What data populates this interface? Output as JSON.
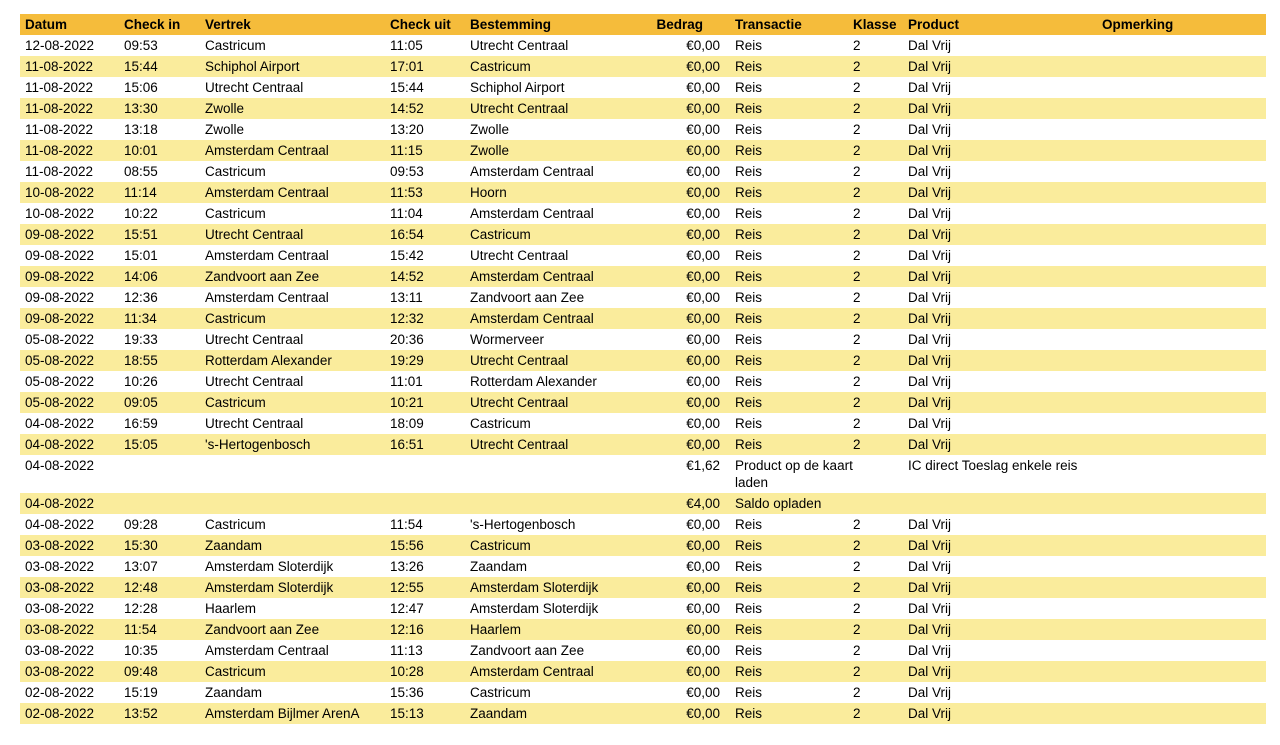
{
  "colors": {
    "header_bg": "#F5BC3B",
    "stripe_bg": "#FAEC9C",
    "row_bg": "#FFFFFF",
    "text": "#000000"
  },
  "table": {
    "columns": [
      {
        "key": "datum",
        "label": "Datum"
      },
      {
        "key": "check_in",
        "label": "Check in"
      },
      {
        "key": "vertrek",
        "label": "Vertrek"
      },
      {
        "key": "check_uit",
        "label": "Check uit"
      },
      {
        "key": "bestemming",
        "label": "Bestemming"
      },
      {
        "key": "bedrag",
        "label": "Bedrag"
      },
      {
        "key": "transactie",
        "label": "Transactie"
      },
      {
        "key": "klasse",
        "label": "Klasse"
      },
      {
        "key": "product",
        "label": "Product"
      },
      {
        "key": "opmerking",
        "label": "Opmerking"
      }
    ],
    "rows": [
      {
        "datum": "12-08-2022",
        "check_in": "09:53",
        "vertrek": "Castricum",
        "check_uit": "11:05",
        "bestemming": "Utrecht Centraal",
        "bedrag": "€0,00",
        "transactie": "Reis",
        "klasse": "2",
        "product": "Dal Vrij",
        "opmerking": ""
      },
      {
        "datum": "11-08-2022",
        "check_in": "15:44",
        "vertrek": "Schiphol Airport",
        "check_uit": "17:01",
        "bestemming": "Castricum",
        "bedrag": "€0,00",
        "transactie": "Reis",
        "klasse": "2",
        "product": "Dal Vrij",
        "opmerking": ""
      },
      {
        "datum": "11-08-2022",
        "check_in": "15:06",
        "vertrek": "Utrecht Centraal",
        "check_uit": "15:44",
        "bestemming": "Schiphol Airport",
        "bedrag": "€0,00",
        "transactie": "Reis",
        "klasse": "2",
        "product": "Dal Vrij",
        "opmerking": ""
      },
      {
        "datum": "11-08-2022",
        "check_in": "13:30",
        "vertrek": "Zwolle",
        "check_uit": "14:52",
        "bestemming": "Utrecht Centraal",
        "bedrag": "€0,00",
        "transactie": "Reis",
        "klasse": "2",
        "product": "Dal Vrij",
        "opmerking": ""
      },
      {
        "datum": "11-08-2022",
        "check_in": "13:18",
        "vertrek": "Zwolle",
        "check_uit": "13:20",
        "bestemming": "Zwolle",
        "bedrag": "€0,00",
        "transactie": "Reis",
        "klasse": "2",
        "product": "Dal Vrij",
        "opmerking": ""
      },
      {
        "datum": "11-08-2022",
        "check_in": "10:01",
        "vertrek": "Amsterdam Centraal",
        "check_uit": "11:15",
        "bestemming": "Zwolle",
        "bedrag": "€0,00",
        "transactie": "Reis",
        "klasse": "2",
        "product": "Dal Vrij",
        "opmerking": ""
      },
      {
        "datum": "11-08-2022",
        "check_in": "08:55",
        "vertrek": "Castricum",
        "check_uit": "09:53",
        "bestemming": "Amsterdam Centraal",
        "bedrag": "€0,00",
        "transactie": "Reis",
        "klasse": "2",
        "product": "Dal Vrij",
        "opmerking": ""
      },
      {
        "datum": "10-08-2022",
        "check_in": "11:14",
        "vertrek": "Amsterdam Centraal",
        "check_uit": "11:53",
        "bestemming": "Hoorn",
        "bedrag": "€0,00",
        "transactie": "Reis",
        "klasse": "2",
        "product": "Dal Vrij",
        "opmerking": ""
      },
      {
        "datum": "10-08-2022",
        "check_in": "10:22",
        "vertrek": "Castricum",
        "check_uit": "11:04",
        "bestemming": "Amsterdam Centraal",
        "bedrag": "€0,00",
        "transactie": "Reis",
        "klasse": "2",
        "product": "Dal Vrij",
        "opmerking": ""
      },
      {
        "datum": "09-08-2022",
        "check_in": "15:51",
        "vertrek": "Utrecht Centraal",
        "check_uit": "16:54",
        "bestemming": "Castricum",
        "bedrag": "€0,00",
        "transactie": "Reis",
        "klasse": "2",
        "product": "Dal Vrij",
        "opmerking": ""
      },
      {
        "datum": "09-08-2022",
        "check_in": "15:01",
        "vertrek": "Amsterdam Centraal",
        "check_uit": "15:42",
        "bestemming": "Utrecht Centraal",
        "bedrag": "€0,00",
        "transactie": "Reis",
        "klasse": "2",
        "product": "Dal Vrij",
        "opmerking": ""
      },
      {
        "datum": "09-08-2022",
        "check_in": "14:06",
        "vertrek": "Zandvoort aan Zee",
        "check_uit": "14:52",
        "bestemming": "Amsterdam Centraal",
        "bedrag": "€0,00",
        "transactie": "Reis",
        "klasse": "2",
        "product": "Dal Vrij",
        "opmerking": ""
      },
      {
        "datum": "09-08-2022",
        "check_in": "12:36",
        "vertrek": "Amsterdam Centraal",
        "check_uit": "13:11",
        "bestemming": "Zandvoort aan Zee",
        "bedrag": "€0,00",
        "transactie": "Reis",
        "klasse": "2",
        "product": "Dal Vrij",
        "opmerking": ""
      },
      {
        "datum": "09-08-2022",
        "check_in": "11:34",
        "vertrek": "Castricum",
        "check_uit": "12:32",
        "bestemming": "Amsterdam Centraal",
        "bedrag": "€0,00",
        "transactie": "Reis",
        "klasse": "2",
        "product": "Dal Vrij",
        "opmerking": ""
      },
      {
        "datum": "05-08-2022",
        "check_in": "19:33",
        "vertrek": "Utrecht Centraal",
        "check_uit": "20:36",
        "bestemming": "Wormerveer",
        "bedrag": "€0,00",
        "transactie": "Reis",
        "klasse": "2",
        "product": "Dal Vrij",
        "opmerking": ""
      },
      {
        "datum": "05-08-2022",
        "check_in": "18:55",
        "vertrek": "Rotterdam Alexander",
        "check_uit": "19:29",
        "bestemming": "Utrecht Centraal",
        "bedrag": "€0,00",
        "transactie": "Reis",
        "klasse": "2",
        "product": "Dal Vrij",
        "opmerking": ""
      },
      {
        "datum": "05-08-2022",
        "check_in": "10:26",
        "vertrek": "Utrecht Centraal",
        "check_uit": "11:01",
        "bestemming": "Rotterdam Alexander",
        "bedrag": "€0,00",
        "transactie": "Reis",
        "klasse": "2",
        "product": "Dal Vrij",
        "opmerking": ""
      },
      {
        "datum": "05-08-2022",
        "check_in": "09:05",
        "vertrek": "Castricum",
        "check_uit": "10:21",
        "bestemming": "Utrecht Centraal",
        "bedrag": "€0,00",
        "transactie": "Reis",
        "klasse": "2",
        "product": "Dal Vrij",
        "opmerking": ""
      },
      {
        "datum": "04-08-2022",
        "check_in": "16:59",
        "vertrek": "Utrecht Centraal",
        "check_uit": "18:09",
        "bestemming": "Castricum",
        "bedrag": "€0,00",
        "transactie": "Reis",
        "klasse": "2",
        "product": "Dal Vrij",
        "opmerking": ""
      },
      {
        "datum": "04-08-2022",
        "check_in": "15:05",
        "vertrek": "'s-Hertogenbosch",
        "check_uit": "16:51",
        "bestemming": "Utrecht Centraal",
        "bedrag": "€0,00",
        "transactie": "Reis",
        "klasse": "2",
        "product": "Dal Vrij",
        "opmerking": ""
      },
      {
        "datum": "04-08-2022",
        "check_in": "",
        "vertrek": "",
        "check_uit": "",
        "bestemming": "",
        "bedrag": "€1,62",
        "transactie": "Product op de kaart laden",
        "klasse": "",
        "product": "IC direct Toeslag enkele reis",
        "opmerking": ""
      },
      {
        "datum": "04-08-2022",
        "check_in": "",
        "vertrek": "",
        "check_uit": "",
        "bestemming": "",
        "bedrag": "€4,00",
        "transactie": "Saldo opladen",
        "klasse": "",
        "product": "",
        "opmerking": ""
      },
      {
        "datum": "04-08-2022",
        "check_in": "09:28",
        "vertrek": "Castricum",
        "check_uit": "11:54",
        "bestemming": "'s-Hertogenbosch",
        "bedrag": "€0,00",
        "transactie": "Reis",
        "klasse": "2",
        "product": "Dal Vrij",
        "opmerking": ""
      },
      {
        "datum": "03-08-2022",
        "check_in": "15:30",
        "vertrek": "Zaandam",
        "check_uit": "15:56",
        "bestemming": "Castricum",
        "bedrag": "€0,00",
        "transactie": "Reis",
        "klasse": "2",
        "product": "Dal Vrij",
        "opmerking": ""
      },
      {
        "datum": "03-08-2022",
        "check_in": "13:07",
        "vertrek": "Amsterdam Sloterdijk",
        "check_uit": "13:26",
        "bestemming": "Zaandam",
        "bedrag": "€0,00",
        "transactie": "Reis",
        "klasse": "2",
        "product": "Dal Vrij",
        "opmerking": ""
      },
      {
        "datum": "03-08-2022",
        "check_in": "12:48",
        "vertrek": "Amsterdam Sloterdijk",
        "check_uit": "12:55",
        "bestemming": "Amsterdam Sloterdijk",
        "bedrag": "€0,00",
        "transactie": "Reis",
        "klasse": "2",
        "product": "Dal Vrij",
        "opmerking": ""
      },
      {
        "datum": "03-08-2022",
        "check_in": "12:28",
        "vertrek": "Haarlem",
        "check_uit": "12:47",
        "bestemming": "Amsterdam Sloterdijk",
        "bedrag": "€0,00",
        "transactie": "Reis",
        "klasse": "2",
        "product": "Dal Vrij",
        "opmerking": ""
      },
      {
        "datum": "03-08-2022",
        "check_in": "11:54",
        "vertrek": "Zandvoort aan Zee",
        "check_uit": "12:16",
        "bestemming": "Haarlem",
        "bedrag": "€0,00",
        "transactie": "Reis",
        "klasse": "2",
        "product": "Dal Vrij",
        "opmerking": ""
      },
      {
        "datum": "03-08-2022",
        "check_in": "10:35",
        "vertrek": "Amsterdam Centraal",
        "check_uit": "11:13",
        "bestemming": "Zandvoort aan Zee",
        "bedrag": "€0,00",
        "transactie": "Reis",
        "klasse": "2",
        "product": "Dal Vrij",
        "opmerking": ""
      },
      {
        "datum": "03-08-2022",
        "check_in": "09:48",
        "vertrek": "Castricum",
        "check_uit": "10:28",
        "bestemming": "Amsterdam Centraal",
        "bedrag": "€0,00",
        "transactie": "Reis",
        "klasse": "2",
        "product": "Dal Vrij",
        "opmerking": ""
      },
      {
        "datum": "02-08-2022",
        "check_in": "15:19",
        "vertrek": "Zaandam",
        "check_uit": "15:36",
        "bestemming": "Castricum",
        "bedrag": "€0,00",
        "transactie": "Reis",
        "klasse": "2",
        "product": "Dal Vrij",
        "opmerking": ""
      },
      {
        "datum": "02-08-2022",
        "check_in": "13:52",
        "vertrek": "Amsterdam Bijlmer ArenA",
        "check_uit": "15:13",
        "bestemming": "Zaandam",
        "bedrag": "€0,00",
        "transactie": "Reis",
        "klasse": "2",
        "product": "Dal Vrij",
        "opmerking": ""
      }
    ]
  }
}
